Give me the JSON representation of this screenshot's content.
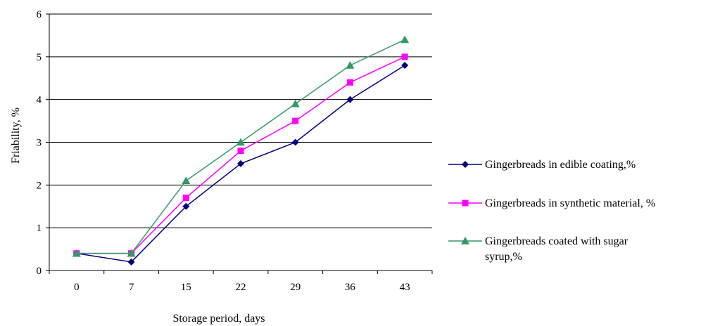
{
  "chart_data": {
    "type": "line",
    "xlabel": "Storage period, days",
    "ylabel": "Friability, %",
    "categories": [
      "0",
      "7",
      "15",
      "22",
      "29",
      "36",
      "43"
    ],
    "ylim": [
      0,
      6
    ],
    "yticks": [
      "0",
      "1",
      "2",
      "3",
      "4",
      "5",
      "6"
    ],
    "grid": "horizontal",
    "legend_position": "right",
    "series": [
      {
        "name": "Gingerbreads in edible coating,%",
        "legend_lines": [
          "Gingerbreads in edible coating,%"
        ],
        "values": [
          0.4,
          0.2,
          1.5,
          2.5,
          3.0,
          4.0,
          4.8
        ],
        "color": "#000080",
        "marker": "diamond"
      },
      {
        "name": "Gingerbreads in synthetic material, %",
        "legend_lines": [
          "Gingerbreads in synthetic material, %"
        ],
        "values": [
          0.4,
          0.4,
          1.7,
          2.8,
          3.5,
          4.4,
          5.0
        ],
        "color": "#ff00ff",
        "marker": "square"
      },
      {
        "name": "Gingerbreads coated with sugar syrup,%",
        "legend_lines": [
          "Gingerbreads coated with sugar",
          "syrup,%"
        ],
        "values": [
          0.4,
          0.4,
          2.1,
          3.0,
          3.9,
          4.8,
          5.4
        ],
        "color": "#339966",
        "marker": "triangle"
      }
    ]
  }
}
